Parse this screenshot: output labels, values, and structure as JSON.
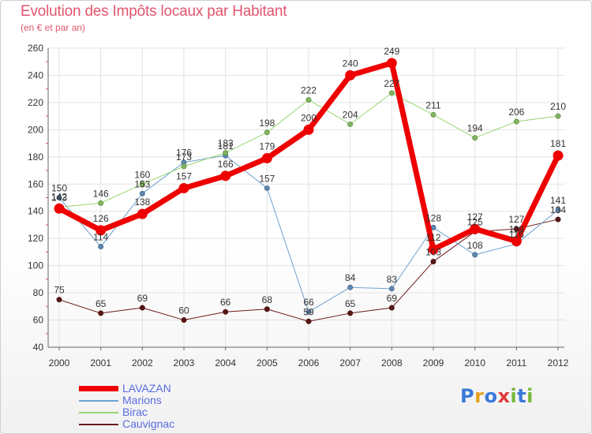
{
  "header": {
    "title": "Evolution des Impôts locaux par Habitant",
    "subtitle": "(en € et par an)"
  },
  "logo": {
    "text": "Proxiti",
    "letters": [
      "P",
      "r",
      "o",
      "x",
      "i",
      "t",
      "i"
    ],
    "colors": [
      "#3a78d8",
      "#e8a020",
      "#3a78d8",
      "#e03a3a",
      "#78b83a",
      "#3a78d8",
      "#78b83a"
    ]
  },
  "chart_data": {
    "type": "line",
    "title": "Evolution des Impôts locaux par Habitant",
    "subtitle": "(en € et par an)",
    "xlabel": "",
    "ylabel": "",
    "x": [
      "2000",
      "2001",
      "2002",
      "2003",
      "2004",
      "2005",
      "2006",
      "2007",
      "2008",
      "2009",
      "2010",
      "2011",
      "2012"
    ],
    "ylim": [
      40,
      260
    ],
    "yticks": [
      40,
      60,
      80,
      100,
      120,
      140,
      160,
      180,
      200,
      220,
      240,
      260
    ],
    "grid": true,
    "legend_position": "bottom-left",
    "series": [
      {
        "name": "Cauvignac",
        "color": "#6b1a1a",
        "width": 1,
        "values": [
          75,
          65,
          69,
          60,
          66,
          68,
          59,
          65,
          69,
          103,
          125,
          127,
          134
        ]
      },
      {
        "name": "Marions",
        "color": "#6fa0d0",
        "width": 1,
        "values": [
          150,
          114,
          153,
          176,
          181,
          157,
          66,
          84,
          83,
          128,
          108,
          116,
          141
        ]
      },
      {
        "name": "Birac",
        "color": "#99d670",
        "width": 1,
        "values": [
          143,
          146,
          160,
          173,
          183,
          198,
          222,
          204,
          227,
          211,
          194,
          206,
          210
        ]
      },
      {
        "name": "LAVAZAN",
        "color": "#ee0000",
        "width": 7,
        "values": [
          142,
          126,
          138,
          157,
          166,
          179,
          200,
          240,
          249,
          112,
          127,
          118,
          181
        ]
      }
    ],
    "legend_order": [
      "LAVAZAN",
      "Marions",
      "Birac",
      "Cauvignac"
    ]
  }
}
